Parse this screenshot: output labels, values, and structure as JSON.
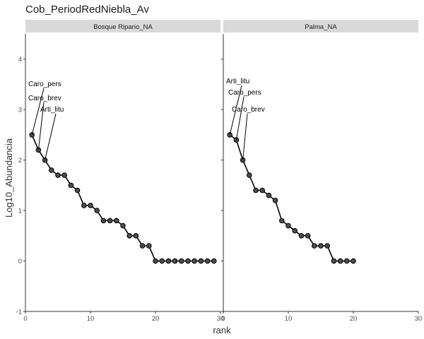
{
  "chart_data": {
    "type": "line",
    "title": "Cob_PeriodRedNiebla_Av",
    "xlabel": "rank",
    "ylabel": "Log10_Abundancia",
    "xlim": [
      0,
      30
    ],
    "ylim": [
      -1,
      4.5
    ],
    "x_ticks": [
      0,
      10,
      20,
      30
    ],
    "y_ticks": [
      -1,
      0,
      1,
      2,
      3,
      4
    ],
    "grid": false,
    "panels": [
      {
        "strip_label": "Bosque Ripario_NA",
        "x": [
          1,
          2,
          3,
          4,
          5,
          6,
          7,
          8,
          9,
          10,
          11,
          12,
          13,
          14,
          15,
          16,
          17,
          18,
          19,
          20,
          21,
          22,
          23,
          24,
          25,
          26,
          27,
          28,
          29
        ],
        "y": [
          2.5,
          2.2,
          2.0,
          1.8,
          1.7,
          1.7,
          1.5,
          1.4,
          1.1,
          1.1,
          1.0,
          0.8,
          0.8,
          0.8,
          0.7,
          0.5,
          0.5,
          0.3,
          0.3,
          0,
          0,
          0,
          0,
          0,
          0,
          0,
          0,
          0,
          0
        ],
        "annotations": [
          {
            "label": "Caro_pers",
            "rank": 1
          },
          {
            "label": "Caro_brev",
            "rank": 2
          },
          {
            "label": "Arti_litu",
            "rank": 3
          }
        ]
      },
      {
        "strip_label": "Palma_NA",
        "x": [
          1,
          2,
          3,
          4,
          5,
          6,
          7,
          8,
          9,
          10,
          11,
          12,
          13,
          14,
          15,
          16,
          17,
          18,
          19,
          20
        ],
        "y": [
          2.5,
          2.4,
          2.0,
          1.7,
          1.4,
          1.4,
          1.3,
          1.2,
          0.8,
          0.7,
          0.6,
          0.5,
          0.5,
          0.3,
          0.3,
          0.3,
          0,
          0,
          0,
          0
        ],
        "annotations": [
          {
            "label": "Arti_litu",
            "rank": 1
          },
          {
            "label": "Caro_pers",
            "rank": 2
          },
          {
            "label": "Caro_brev",
            "rank": 3
          }
        ]
      }
    ]
  }
}
